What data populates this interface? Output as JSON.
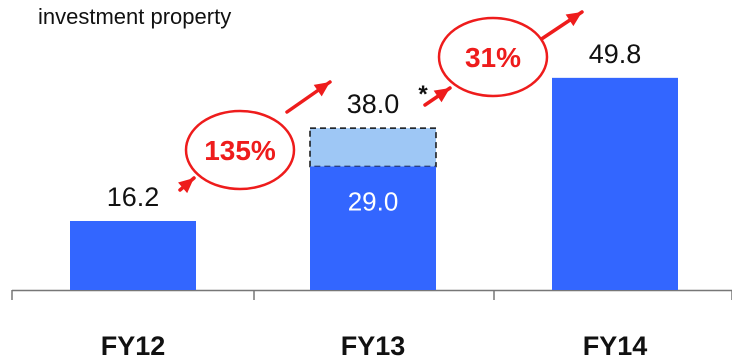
{
  "subtitle": "investment property",
  "chart_data": {
    "type": "bar",
    "categories": [
      "FY12",
      "FY13",
      "FY14"
    ],
    "values": [
      16.2,
      38.0,
      49.8
    ],
    "value_labels": [
      "16.2",
      "38.0",
      "49.8"
    ],
    "footnote_marker": {
      "category": "FY13",
      "text": "*"
    },
    "inner_segment": {
      "category": "FY13",
      "value": 29.0,
      "label": "29.0"
    },
    "growth_labels": [
      {
        "from": "FY12",
        "to": "FY13",
        "text": "135%"
      },
      {
        "from": "FY13",
        "to": "FY14",
        "text": "31%"
      }
    ],
    "ylim": [
      0,
      60
    ],
    "grid": false,
    "colors": {
      "bar": "#3366ff",
      "dashed_segment": "#9ec7f5",
      "growth": "#ee1c1c",
      "text": "#111111",
      "inner_label": "#ffffff"
    }
  }
}
